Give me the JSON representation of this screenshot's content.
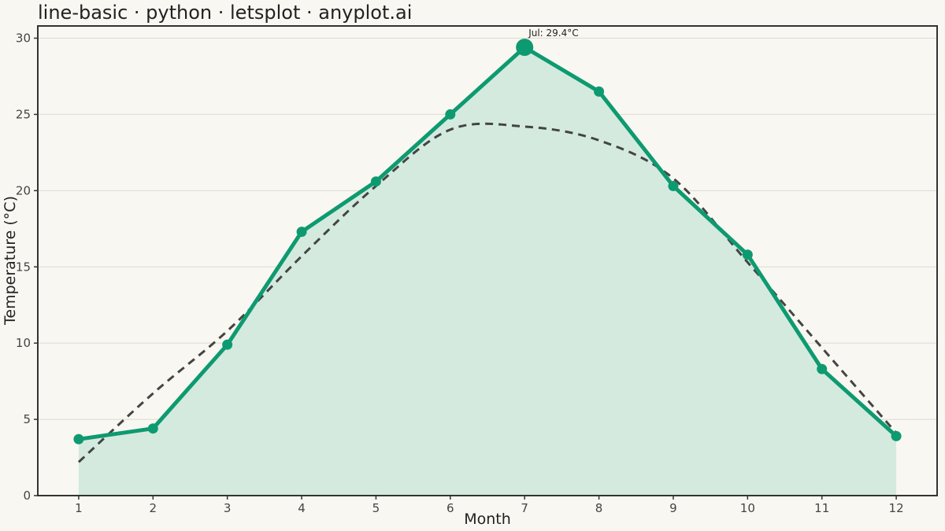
{
  "chart_data": {
    "type": "line",
    "title": "line-basic · python · letsplot · anyplot.ai",
    "xlabel": "Month",
    "ylabel": "Temperature (°C)",
    "x": [
      1,
      2,
      3,
      4,
      5,
      6,
      7,
      8,
      9,
      10,
      11,
      12
    ],
    "xlim": [
      0.45,
      12.55
    ],
    "ylim": [
      0,
      30.8
    ],
    "yticks": [
      0,
      5,
      10,
      15,
      20,
      25,
      30
    ],
    "grid": "horizontal",
    "series": [
      {
        "values": [
          3.7,
          4.4,
          9.9,
          17.3,
          20.6,
          25.0,
          29.4,
          26.5,
          20.3,
          15.8,
          8.3,
          3.9
        ],
        "color": "#0e9a70",
        "fill": "#d4eadf",
        "style": "solid-with-markers-and-area"
      },
      {
        "values": [
          2.2,
          6.7,
          10.8,
          15.7,
          20.3,
          24.0,
          24.2,
          23.3,
          20.8,
          15.3,
          9.7,
          4.1
        ],
        "color": "#444444",
        "style": "dashed-smooth-trend"
      }
    ],
    "annotation": {
      "text": "Jul: 29.4°C",
      "x": 7,
      "y": 29.4
    }
  }
}
